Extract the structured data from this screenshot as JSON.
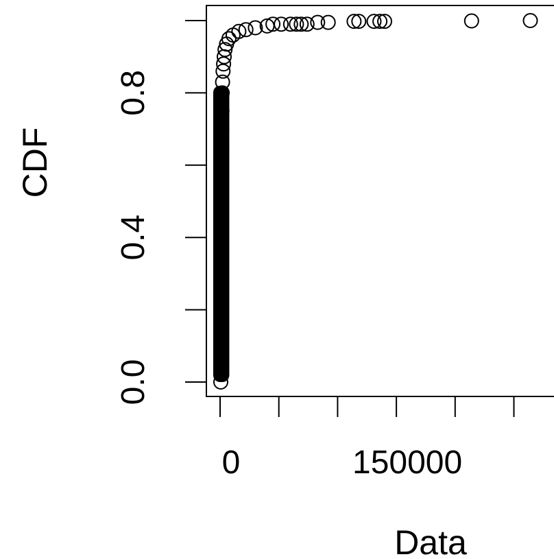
{
  "chart_data": {
    "type": "scatter",
    "title": "",
    "xlabel": "Data",
    "ylabel": "CDF",
    "xlim": [
      -5000,
      285000
    ],
    "ylim": [
      -0.04,
      1.04
    ],
    "x_ticks": [
      0,
      50000,
      100000,
      150000,
      200000,
      250000
    ],
    "x_tick_labels": [
      "0",
      "",
      "",
      "150000",
      "",
      ""
    ],
    "y_ticks": [
      0.0,
      0.2,
      0.4,
      0.6,
      0.8,
      1.0
    ],
    "y_tick_labels": [
      "0.0",
      "",
      "0.4",
      "",
      "0.8",
      ""
    ],
    "grid": false,
    "legend": "none",
    "marker": "open-circle",
    "point_color": "#000000",
    "dense_band": {
      "x_range": [
        0,
        2000
      ],
      "y_range": [
        0.0,
        0.82
      ]
    },
    "series": [
      {
        "values": [
          {
            "x": 600,
            "y": 0.0
          },
          {
            "x": 600,
            "y": 0.05
          },
          {
            "x": 600,
            "y": 0.1
          },
          {
            "x": 600,
            "y": 0.15
          },
          {
            "x": 700,
            "y": 0.2
          },
          {
            "x": 700,
            "y": 0.25
          },
          {
            "x": 700,
            "y": 0.3
          },
          {
            "x": 800,
            "y": 0.35
          },
          {
            "x": 800,
            "y": 0.4
          },
          {
            "x": 900,
            "y": 0.45
          },
          {
            "x": 900,
            "y": 0.5
          },
          {
            "x": 1000,
            "y": 0.55
          },
          {
            "x": 1100,
            "y": 0.6
          },
          {
            "x": 1200,
            "y": 0.65
          },
          {
            "x": 1400,
            "y": 0.7
          },
          {
            "x": 1600,
            "y": 0.75
          },
          {
            "x": 1800,
            "y": 0.8
          },
          {
            "x": 2100,
            "y": 0.83
          },
          {
            "x": 2500,
            "y": 0.86
          },
          {
            "x": 3000,
            "y": 0.88
          },
          {
            "x": 3500,
            "y": 0.9
          },
          {
            "x": 4200,
            "y": 0.92
          },
          {
            "x": 5500,
            "y": 0.935
          },
          {
            "x": 7500,
            "y": 0.95
          },
          {
            "x": 11000,
            "y": 0.96
          },
          {
            "x": 16000,
            "y": 0.97
          },
          {
            "x": 22000,
            "y": 0.975
          },
          {
            "x": 30000,
            "y": 0.98
          },
          {
            "x": 40000,
            "y": 0.985
          },
          {
            "x": 45000,
            "y": 0.99
          },
          {
            "x": 52000,
            "y": 0.99
          },
          {
            "x": 60000,
            "y": 0.99
          },
          {
            "x": 65000,
            "y": 0.99
          },
          {
            "x": 69000,
            "y": 0.99
          },
          {
            "x": 74000,
            "y": 0.99
          },
          {
            "x": 83000,
            "y": 0.995
          },
          {
            "x": 92000,
            "y": 0.995
          },
          {
            "x": 114000,
            "y": 0.998
          },
          {
            "x": 118000,
            "y": 0.998
          },
          {
            "x": 131000,
            "y": 0.998
          },
          {
            "x": 136000,
            "y": 0.998
          },
          {
            "x": 140000,
            "y": 0.998
          },
          {
            "x": 214000,
            "y": 0.999
          },
          {
            "x": 264000,
            "y": 1.0
          }
        ]
      }
    ]
  }
}
